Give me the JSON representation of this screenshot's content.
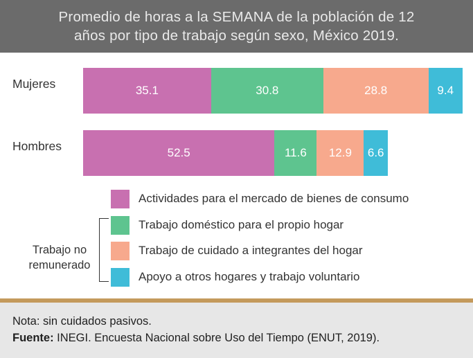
{
  "header": {
    "line1": "Promedio de horas a la SEMANA de la población de 12",
    "line2": "años por tipo de trabajo según sexo, México 2019."
  },
  "chart_data": {
    "type": "bar",
    "orientation": "horizontal",
    "stacked": true,
    "title": "Promedio de horas a la SEMANA de la población de 12 años por tipo de trabajo según sexo, México 2019.",
    "categories": [
      "Mujeres",
      "Hombres"
    ],
    "series": [
      {
        "name": "Actividades para el mercado de bienes de consumo",
        "color": "#c870b0",
        "values": [
          35.1,
          52.5
        ]
      },
      {
        "name": "Trabajo doméstico para el propio  hogar",
        "color": "#5ec48f",
        "values": [
          30.8,
          11.6
        ]
      },
      {
        "name": "Trabajo de cuidado a integrantes del hogar",
        "color": "#f7a98d",
        "values": [
          28.8,
          12.9
        ]
      },
      {
        "name": "Apoyo a otros  hogares y trabajo voluntario",
        "color": "#3fbcd8",
        "values": [
          9.4,
          6.6
        ]
      }
    ],
    "xlim": [
      0,
      104.1
    ],
    "grid": false,
    "legend": "bottom"
  },
  "legend_group_label_line1": "Trabajo no",
  "legend_group_label_line2": "remunerado",
  "footer": {
    "note": "Nota: sin cuidados pasivos.",
    "source_label": "Fuente:",
    "source_text": " INEGI. Encuesta Nacional sobre Uso del Tiempo (ENUT, 2019)."
  }
}
